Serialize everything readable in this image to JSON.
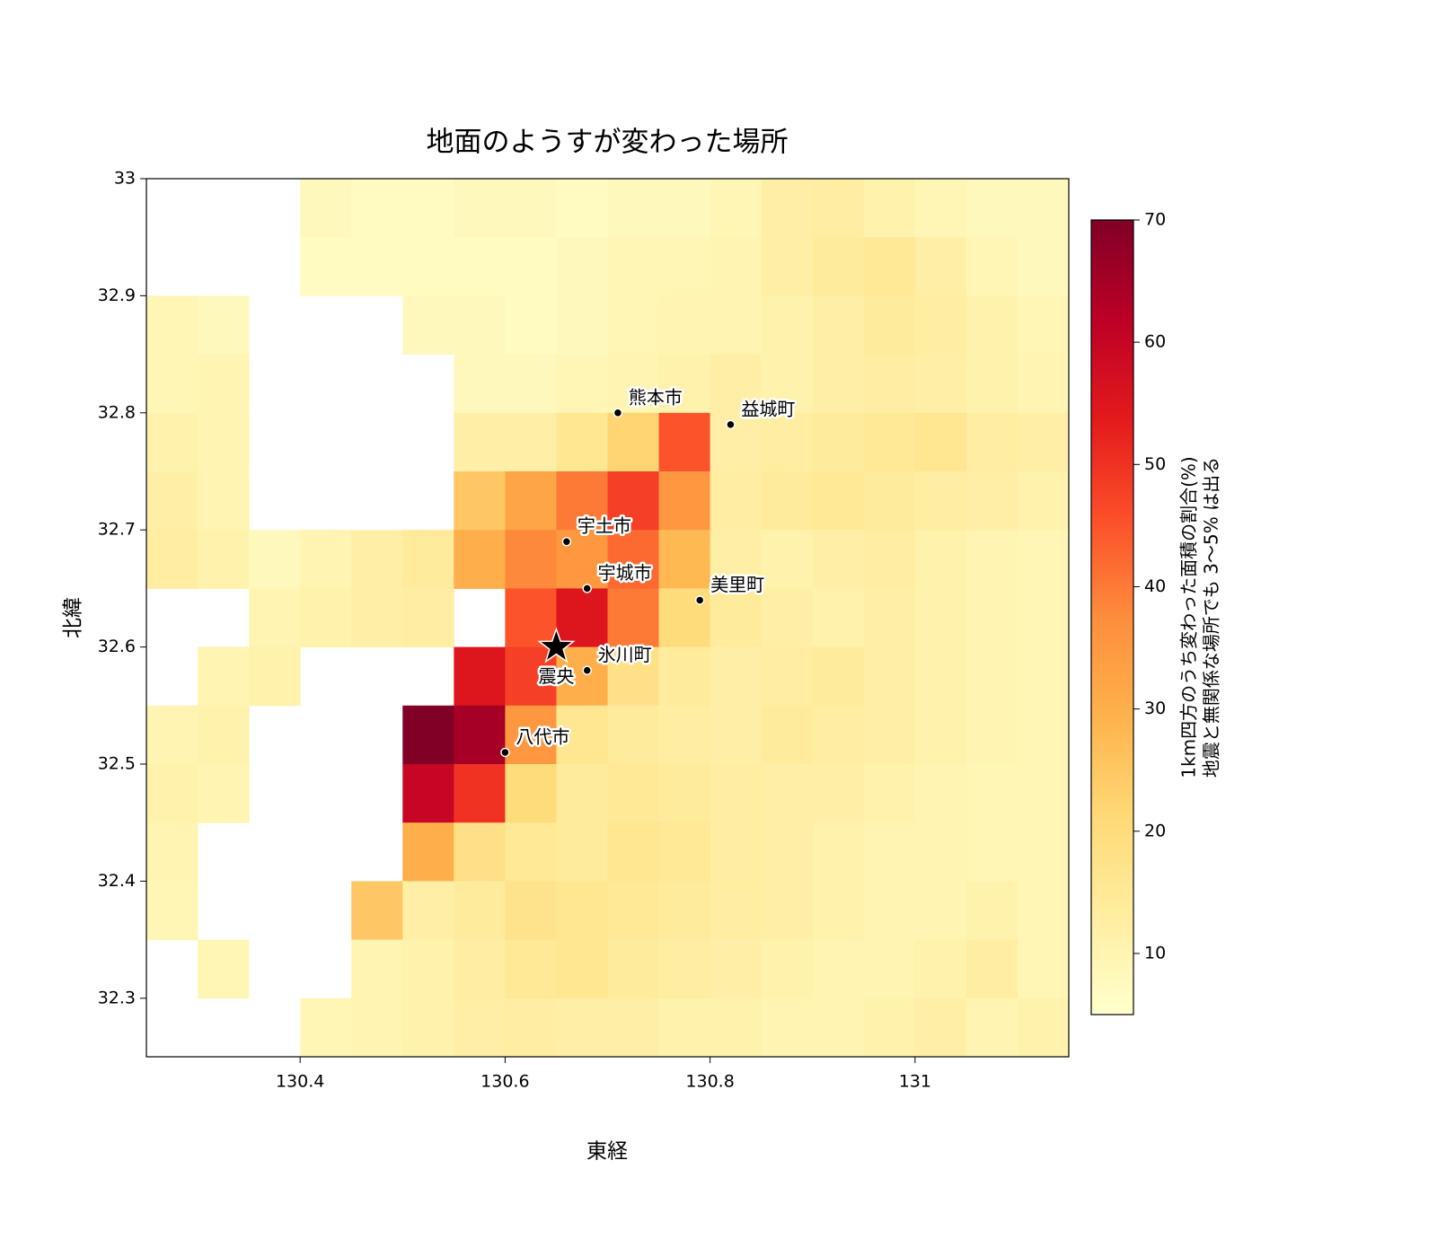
{
  "chart_data": {
    "type": "heatmap",
    "title": "地面のようすが変わった場所",
    "x_label": "東経",
    "y_label": "北緯",
    "xlim": [
      130.25,
      131.15
    ],
    "ylim": [
      32.25,
      33.0
    ],
    "xticks": [
      130.4,
      130.6,
      130.8,
      131.0
    ],
    "yticks": [
      32.3,
      32.4,
      32.5,
      32.6,
      32.7,
      32.8,
      32.9,
      33.0
    ],
    "colormap_colors": [
      "#ffffcc",
      "#ffeda0",
      "#fed976",
      "#feb24c",
      "#fd8d3c",
      "#fc4e2a",
      "#e31a1c",
      "#bd0026",
      "#800026"
    ],
    "clim": [
      5,
      70
    ],
    "colorbar_ticks": [
      10,
      20,
      30,
      40,
      50,
      60,
      70
    ],
    "colorbar_label": [
      "1km四方のうち変わった面積の割合(%)",
      "地震と無関係な場所でも 3〜5% は出る"
    ],
    "grid": {
      "lons": [
        130.275,
        130.325,
        130.375,
        130.425,
        130.475,
        130.525,
        130.575,
        130.625,
        130.675,
        130.725,
        130.775,
        130.825,
        130.875,
        130.925,
        130.975,
        131.025,
        131.075,
        131.125
      ],
      "lats": [
        32.975,
        32.925,
        32.875,
        32.825,
        32.775,
        32.725,
        32.675,
        32.625,
        32.575,
        32.525,
        32.475,
        32.425,
        32.375,
        32.325,
        32.275
      ],
      "values": [
        [
          null,
          null,
          null,
          8,
          7,
          7,
          8,
          8,
          7,
          8,
          8,
          9,
          12,
          13,
          11,
          9,
          8,
          8
        ],
        [
          null,
          null,
          null,
          7,
          7,
          7,
          7,
          7,
          8,
          9,
          9,
          10,
          12,
          14,
          15,
          12,
          9,
          8
        ],
        [
          9,
          8,
          null,
          null,
          null,
          8,
          8,
          7,
          8,
          9,
          10,
          10,
          11,
          12,
          14,
          13,
          11,
          9
        ],
        [
          9,
          10,
          null,
          null,
          null,
          null,
          8,
          8,
          9,
          10,
          11,
          12,
          11,
          12,
          13,
          12,
          11,
          10
        ],
        [
          11,
          10,
          null,
          null,
          null,
          null,
          12,
          12,
          16,
          22,
          45,
          12,
          13,
          14,
          15,
          16,
          13,
          12
        ],
        [
          12,
          10,
          null,
          null,
          null,
          null,
          25,
          32,
          40,
          48,
          35,
          13,
          14,
          15,
          14,
          13,
          12,
          11
        ],
        [
          13,
          11,
          8,
          10,
          12,
          14,
          30,
          38,
          35,
          42,
          28,
          12,
          11,
          12,
          13,
          11,
          10,
          9
        ],
        [
          null,
          null,
          10,
          11,
          12,
          13,
          null,
          45,
          55,
          40,
          20,
          14,
          12,
          11,
          12,
          11,
          10,
          9
        ],
        [
          null,
          10,
          11,
          null,
          null,
          null,
          55,
          48,
          30,
          18,
          14,
          12,
          13,
          14,
          12,
          11,
          10,
          9
        ],
        [
          10,
          11,
          null,
          null,
          null,
          70,
          65,
          35,
          16,
          14,
          13,
          12,
          14,
          13,
          12,
          11,
          10,
          9
        ],
        [
          11,
          10,
          null,
          null,
          null,
          60,
          50,
          20,
          14,
          15,
          14,
          13,
          12,
          12,
          11,
          10,
          9,
          9
        ],
        [
          10,
          null,
          null,
          null,
          null,
          30,
          18,
          15,
          14,
          16,
          15,
          13,
          12,
          11,
          10,
          10,
          9,
          9
        ],
        [
          9,
          null,
          null,
          null,
          25,
          12,
          14,
          17,
          16,
          15,
          14,
          13,
          12,
          11,
          10,
          10,
          11,
          9
        ],
        [
          null,
          9,
          null,
          null,
          10,
          11,
          13,
          15,
          16,
          14,
          13,
          12,
          11,
          10,
          10,
          11,
          13,
          9
        ],
        [
          null,
          null,
          null,
          9,
          10,
          11,
          12,
          13,
          12,
          12,
          11,
          11,
          10,
          10,
          11,
          12,
          10,
          11
        ]
      ]
    },
    "cities": [
      {
        "name": "熊本市",
        "lon": 130.71,
        "lat": 32.8
      },
      {
        "name": "益城町",
        "lon": 130.82,
        "lat": 32.79
      },
      {
        "name": "宇土市",
        "lon": 130.66,
        "lat": 32.69
      },
      {
        "name": "宇城市",
        "lon": 130.68,
        "lat": 32.65
      },
      {
        "name": "美里町",
        "lon": 130.79,
        "lat": 32.64
      },
      {
        "name": "氷川町",
        "lon": 130.68,
        "lat": 32.58
      },
      {
        "name": "八代市",
        "lon": 130.6,
        "lat": 32.51
      }
    ],
    "epicenter": {
      "name": "震央",
      "lon": 130.65,
      "lat": 32.6
    }
  }
}
